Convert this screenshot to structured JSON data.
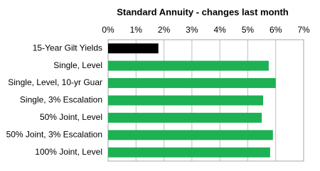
{
  "chart_data": {
    "type": "barh",
    "title": "Standard Annuity  - changes last month",
    "categories": [
      "15-Year Gilt Yields",
      "Single, Level",
      "Single, Level, 10-yr Guar",
      "Single, 3% Escalation",
      "50% Joint, Level",
      "50% Joint, 3% Escalation",
      "100% Joint, Level"
    ],
    "values": [
      1.8,
      5.75,
      6.0,
      5.55,
      5.5,
      5.9,
      5.8
    ],
    "colors": [
      "#000000",
      "#1db154",
      "#1db154",
      "#1db154",
      "#1db154",
      "#1db154",
      "#1db154"
    ],
    "xlim": [
      0,
      7
    ],
    "xticks": [
      {
        "value": 0,
        "label": "0%"
      },
      {
        "value": 1,
        "label": "1%"
      },
      {
        "value": 2,
        "label": "2%"
      },
      {
        "value": 3,
        "label": "3%"
      },
      {
        "value": 4,
        "label": "4%"
      },
      {
        "value": 5,
        "label": "5%"
      },
      {
        "value": 6,
        "label": "6%"
      },
      {
        "value": 7,
        "label": "7%"
      }
    ],
    "grid": true
  }
}
